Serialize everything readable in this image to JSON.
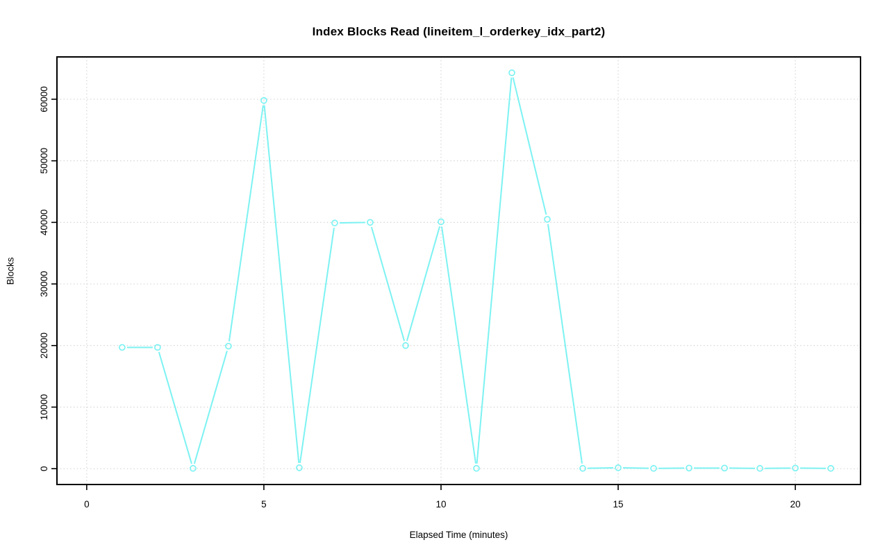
{
  "figure": {
    "background_color": "#ffffff",
    "text_color": "#000000"
  },
  "chart_data": {
    "type": "line",
    "title": "Index Blocks Read (lineitem_l_orderkey_idx_part2)",
    "xlabel": "Elapsed Time (minutes)",
    "ylabel": "Blocks",
    "x": [
      1,
      2,
      3,
      4,
      5,
      6,
      7,
      8,
      9,
      10,
      11,
      12,
      13,
      14,
      15,
      16,
      17,
      18,
      19,
      20,
      21
    ],
    "y": [
      19700,
      19700,
      50,
      19900,
      59800,
      150,
      39900,
      40000,
      20000,
      40100,
      50,
      64300,
      40500,
      50,
      150,
      50,
      100,
      100,
      50,
      100,
      50
    ],
    "x_ticks": [
      0,
      5,
      10,
      15,
      20
    ],
    "y_ticks": [
      0,
      10000,
      20000,
      30000,
      40000,
      50000,
      60000
    ],
    "xlim": [
      -0.84,
      21.84
    ],
    "ylim": [
      -2570,
      66870
    ],
    "grid": true,
    "grid_style": "dotted",
    "legend": "none",
    "marker": "open-circle",
    "line_color": "#7DF2F2",
    "grid_color": "#D2D2D2",
    "axis_color": "#000000"
  }
}
